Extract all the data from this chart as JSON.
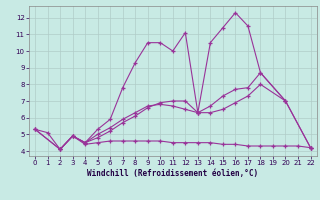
{
  "xlabel": "Windchill (Refroidissement éolien,°C)",
  "bg_color": "#c8eae4",
  "line_color": "#993399",
  "xlim": [
    -0.5,
    22.5
  ],
  "ylim": [
    3.7,
    12.7
  ],
  "xticks": [
    0,
    1,
    2,
    3,
    4,
    5,
    6,
    7,
    8,
    9,
    10,
    11,
    12,
    13,
    14,
    15,
    16,
    17,
    18,
    19,
    20,
    21,
    22
  ],
  "yticks": [
    4,
    5,
    6,
    7,
    8,
    9,
    10,
    11,
    12
  ],
  "grid_color": "#b0ccc8",
  "series": [
    {
      "x": [
        0,
        1,
        2,
        3,
        4,
        5,
        6,
        7,
        8,
        9,
        10,
        11,
        12,
        13,
        14,
        15,
        16,
        17,
        18,
        20,
        21,
        22
      ],
      "y": [
        5.3,
        5.1,
        4.1,
        4.9,
        4.5,
        5.3,
        5.9,
        7.8,
        9.3,
        10.5,
        10.5,
        10.0,
        11.1,
        6.3,
        10.5,
        11.4,
        12.3,
        11.5,
        8.7,
        7.0,
        null,
        4.2
      ]
    },
    {
      "x": [
        0,
        2,
        3,
        4,
        5,
        6,
        7,
        8,
        9,
        10,
        11,
        12,
        13,
        14,
        15,
        16,
        17,
        18,
        20,
        22
      ],
      "y": [
        5.3,
        4.1,
        4.9,
        4.5,
        4.8,
        5.2,
        5.7,
        6.1,
        6.6,
        6.9,
        7.0,
        7.0,
        6.3,
        6.7,
        7.3,
        7.7,
        7.8,
        8.7,
        7.0,
        4.2
      ]
    },
    {
      "x": [
        2,
        3,
        4,
        5,
        6,
        7,
        8,
        9,
        10,
        11,
        12,
        13,
        14,
        15,
        16,
        17,
        18,
        19,
        20,
        21,
        22
      ],
      "y": [
        4.1,
        4.9,
        4.4,
        4.5,
        4.6,
        4.6,
        4.6,
        4.6,
        4.6,
        4.5,
        4.5,
        4.5,
        4.5,
        4.4,
        4.4,
        4.3,
        4.3,
        4.3,
        4.3,
        4.3,
        4.2
      ]
    },
    {
      "x": [
        0,
        2,
        3,
        4,
        5,
        6,
        7,
        8,
        9,
        10,
        11,
        12,
        13,
        14,
        15,
        16,
        17,
        18,
        20,
        22
      ],
      "y": [
        5.3,
        4.1,
        4.9,
        4.5,
        5.0,
        5.4,
        5.9,
        6.3,
        6.7,
        6.8,
        6.7,
        6.5,
        6.3,
        6.3,
        6.5,
        6.9,
        7.3,
        8.0,
        7.0,
        4.2
      ]
    }
  ]
}
